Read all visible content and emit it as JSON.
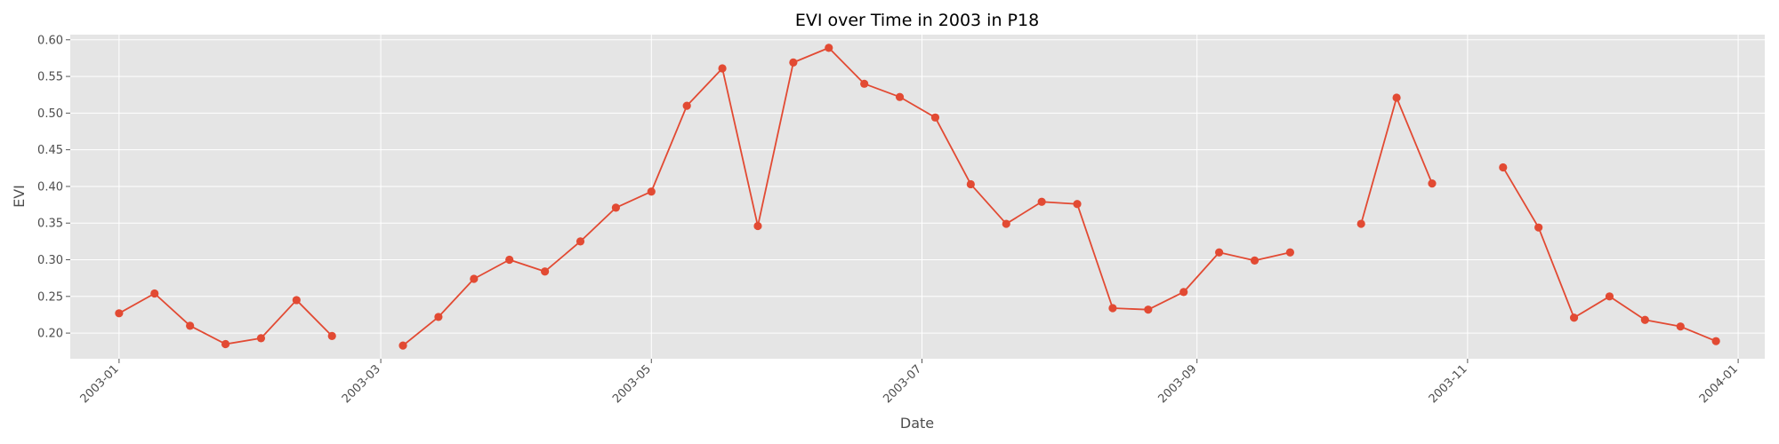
{
  "chart_data": {
    "type": "line",
    "title": "EVI over Time in 2003 in P18",
    "xlabel": "Date",
    "ylabel": "EVI",
    "grid": true,
    "legend": "none",
    "colors": {
      "line": "#E24A33",
      "panel": "#E5E5E5",
      "grid": "#FFFFFF"
    },
    "ylim": [
      0.165,
      0.607
    ],
    "xlim": [
      "2002-12-21",
      "2004-01-07"
    ],
    "y_ticks": [
      0.2,
      0.25,
      0.3,
      0.35,
      0.4,
      0.45,
      0.5,
      0.55,
      0.6
    ],
    "y_tick_labels": [
      "0.20",
      "0.25",
      "0.30",
      "0.35",
      "0.40",
      "0.45",
      "0.50",
      "0.55",
      "0.60"
    ],
    "x_ticks": [
      "2003-01-01",
      "2003-03-01",
      "2003-05-01",
      "2003-07-01",
      "2003-09-01",
      "2003-11-01",
      "2004-01-01"
    ],
    "x_tick_labels": [
      "2003-01",
      "2003-03",
      "2003-05",
      "2003-07",
      "2003-09",
      "2003-11",
      "2004-01"
    ],
    "series": [
      {
        "x": [
          "2003-01-01",
          "2003-01-09",
          "2003-01-17",
          "2003-01-25",
          "2003-02-02",
          "2003-02-10",
          "2003-02-18",
          "2003-02-26",
          "2003-03-06",
          "2003-03-14",
          "2003-03-22",
          "2003-03-30",
          "2003-04-07",
          "2003-04-15",
          "2003-04-23",
          "2003-05-01",
          "2003-05-09",
          "2003-05-17",
          "2003-05-25",
          "2003-06-02",
          "2003-06-10",
          "2003-06-18",
          "2003-06-26",
          "2003-07-04",
          "2003-07-12",
          "2003-07-20",
          "2003-07-28",
          "2003-08-05",
          "2003-08-13",
          "2003-08-21",
          "2003-08-29",
          "2003-09-06",
          "2003-09-14",
          "2003-09-22",
          "2003-09-30",
          "2003-10-08",
          "2003-10-16",
          "2003-10-24",
          "2003-11-01",
          "2003-11-09",
          "2003-11-17",
          "2003-11-25",
          "2003-12-03",
          "2003-12-11",
          "2003-12-19",
          "2003-12-27"
        ],
        "y": [
          0.227,
          0.254,
          0.21,
          0.185,
          0.193,
          0.245,
          0.196,
          null,
          0.183,
          0.222,
          0.274,
          0.3,
          0.284,
          0.325,
          0.371,
          0.393,
          0.51,
          0.561,
          0.346,
          0.569,
          0.589,
          0.54,
          0.522,
          0.494,
          0.403,
          0.349,
          0.379,
          0.376,
          0.234,
          0.232,
          0.256,
          0.31,
          0.299,
          0.31,
          null,
          0.349,
          0.521,
          0.404,
          null,
          0.426,
          0.344,
          0.221,
          0.25,
          0.218,
          0.209,
          0.189
        ]
      }
    ]
  }
}
